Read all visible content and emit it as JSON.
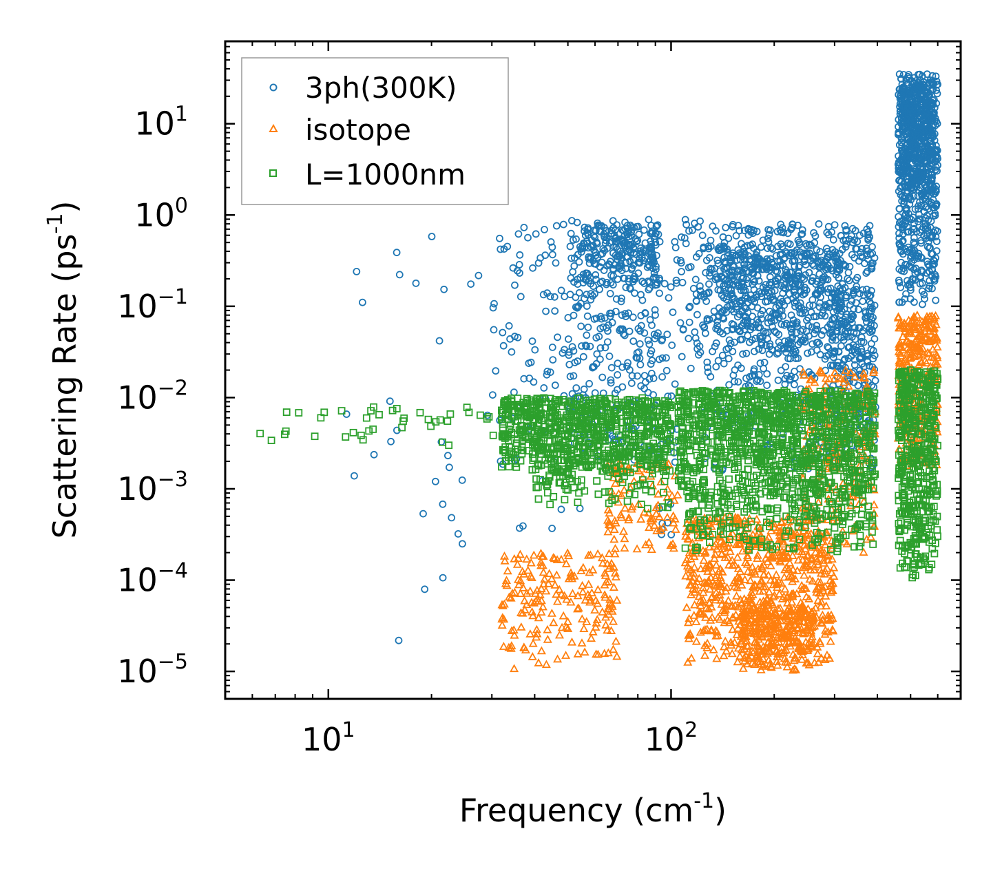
{
  "chart_data": {
    "type": "scatter",
    "xscale": "log",
    "yscale": "log",
    "xlim": [
      5,
      700
    ],
    "ylim": [
      5e-06,
      80
    ],
    "xlabel": "Frequency (cm",
    "xlabel_sup": "-1",
    "xlabel_close": ")",
    "ylabel": "Scattering Rate (ps",
    "ylabel_sup": "-1",
    "ylabel_close": ")",
    "legend_position": "top-left",
    "grid": false,
    "x_ticks": [
      {
        "value": 10,
        "base": "10",
        "exp": "1"
      },
      {
        "value": 100,
        "base": "10",
        "exp": "2"
      }
    ],
    "y_ticks": [
      {
        "value": 10,
        "base": "10",
        "exp": "1"
      },
      {
        "value": 1,
        "base": "10",
        "exp": "0"
      },
      {
        "value": 0.1,
        "base": "10",
        "exp": "-1"
      },
      {
        "value": 0.01,
        "base": "10",
        "exp": "-2"
      },
      {
        "value": 0.001,
        "base": "10",
        "exp": "-3"
      },
      {
        "value": 0.0001,
        "base": "10",
        "exp": "-4"
      },
      {
        "value": 1e-05,
        "base": "10",
        "exp": "-5"
      }
    ],
    "series": [
      {
        "name": "3ph(300K)",
        "marker": "circle",
        "color": "#1f77b4",
        "regions": [
          {
            "x": [
              10,
              30
            ],
            "y": [
              1e-05,
              0.6
            ],
            "n": 30
          },
          {
            "x": [
              30,
              55
            ],
            "y": [
              0.0003,
              0.8
            ],
            "n": 90
          },
          {
            "x": [
              50,
              92
            ],
            "y": [
              0.002,
              0.9
            ],
            "n": 320
          },
          {
            "x": [
              55,
              92
            ],
            "y": [
              0.15,
              0.8
            ],
            "n": 160
          },
          {
            "x": [
              92,
              105
            ],
            "y": [
              0.0002,
              0.7
            ],
            "n": 40
          },
          {
            "x": [
              105,
              125
            ],
            "y": [
              0.02,
              0.9
            ],
            "n": 50
          },
          {
            "x": [
              125,
              395
            ],
            "y": [
              0.0015,
              0.8
            ],
            "n": 700
          },
          {
            "x": [
              140,
              320
            ],
            "y": [
              0.03,
              0.4
            ],
            "n": 350
          },
          {
            "x": [
              290,
              395
            ],
            "y": [
              0.005,
              0.15
            ],
            "n": 120
          },
          {
            "x": [
              460,
              600
            ],
            "y": [
              0.1,
              35
            ],
            "n": 600
          },
          {
            "x": [
              470,
              580
            ],
            "y": [
              1.5,
              25
            ],
            "n": 300
          }
        ]
      },
      {
        "name": "isotope",
        "marker": "triangle",
        "color": "#ff7f0e",
        "regions": [
          {
            "x": [
              32,
              70
            ],
            "y": [
              1e-05,
              0.0002
            ],
            "n": 200
          },
          {
            "x": [
              65,
              105
            ],
            "y": [
              0.0002,
              0.002
            ],
            "n": 100
          },
          {
            "x": [
              110,
              300
            ],
            "y": [
              1e-05,
              0.0005
            ],
            "n": 700
          },
          {
            "x": [
              160,
              260
            ],
            "y": [
              1e-05,
              5e-05
            ],
            "n": 250
          },
          {
            "x": [
              240,
              395
            ],
            "y": [
              0.0002,
              0.02
            ],
            "n": 200
          },
          {
            "x": [
              460,
              600
            ],
            "y": [
              0.0015,
              0.08
            ],
            "n": 300
          }
        ]
      },
      {
        "name": "L=1000nm",
        "marker": "square",
        "color": "#2ca02c",
        "regions": [
          {
            "x": [
              6,
              32
            ],
            "y": [
              0.0028,
              0.008
            ],
            "n": 40
          },
          {
            "x": [
              32,
              100
            ],
            "y": [
              0.0015,
              0.01
            ],
            "n": 700
          },
          {
            "x": [
              40,
              100
            ],
            "y": [
              0.0006,
              0.003
            ],
            "n": 150
          },
          {
            "x": [
              105,
              395
            ],
            "y": [
              0.0008,
              0.012
            ],
            "n": 1100
          },
          {
            "x": [
              110,
              390
            ],
            "y": [
              0.0002,
              0.001
            ],
            "n": 250
          },
          {
            "x": [
              460,
              600
            ],
            "y": [
              0.0001,
              0.02
            ],
            "n": 500
          }
        ]
      }
    ]
  }
}
